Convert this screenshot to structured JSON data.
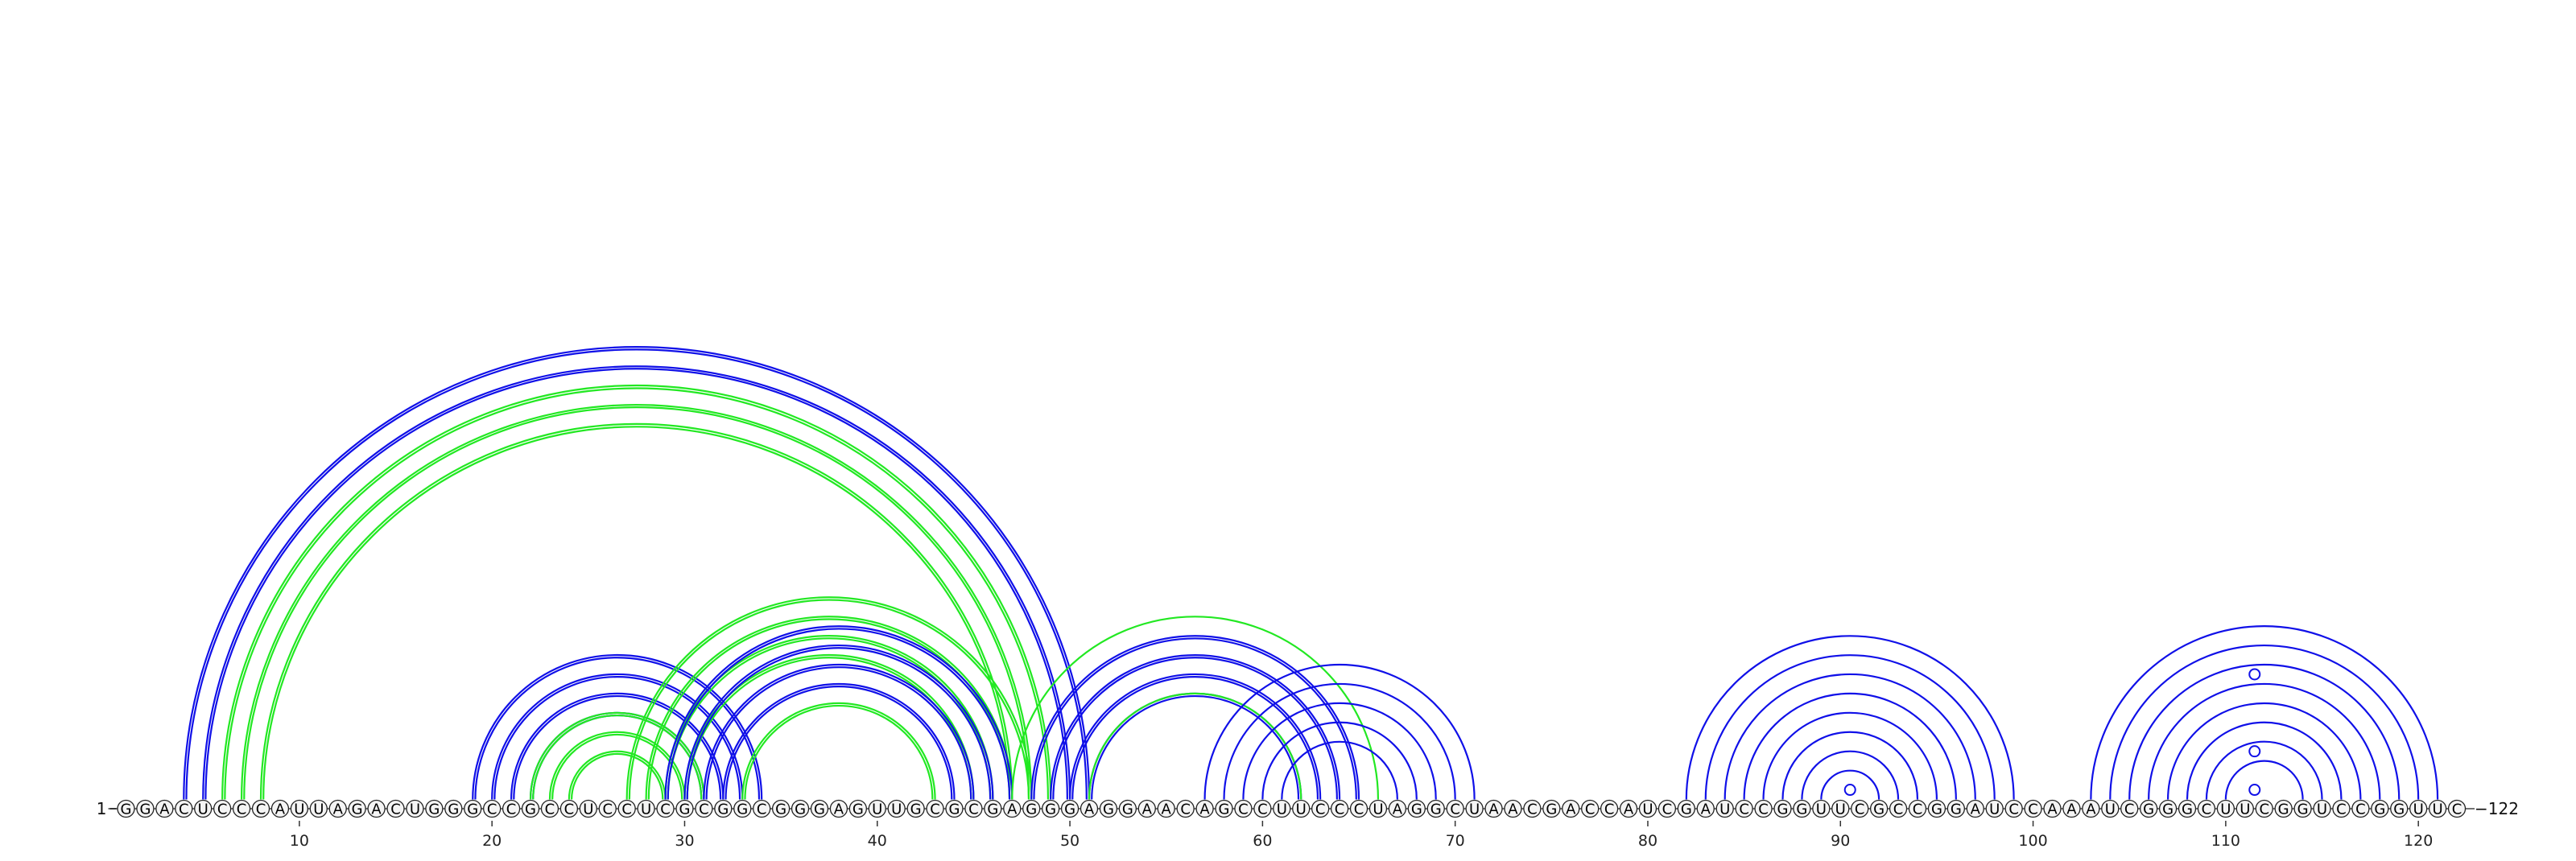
{
  "diagram": {
    "sequence": "GGACUCCCAUUAGACUGGGCCGCCUCCUCGCGGCGGGAGUUGCGCGAGGGAGGAACAGCCUUCCCUAGGCUAACGACCAUCGAUCCGGUUCGCCGGAUCCAAAUCGGGCUUCGGUCCGGUUC",
    "start_label": "1",
    "end_label": "122",
    "ticks": [
      10,
      20,
      30,
      40,
      50,
      60,
      70,
      80,
      90,
      100,
      110,
      120
    ],
    "colors": {
      "blue": "#1010e8",
      "green": "#22e822",
      "nucleotide_stroke": "#222222"
    },
    "helices": [
      {
        "color": "blue",
        "i": 4,
        "j": 51,
        "count": 2,
        "double": true
      },
      {
        "color": "green",
        "i": 6,
        "j": 49,
        "count": 2,
        "double": true
      },
      {
        "color": "green",
        "i": 8,
        "j": 47,
        "count": 1,
        "double": true
      },
      {
        "color": "blue",
        "i": 19,
        "j": 34,
        "count": 4,
        "double": true
      },
      {
        "color": "green",
        "i": 22,
        "j": 31,
        "count": 3,
        "double": true
      },
      {
        "color": "green",
        "i": 27,
        "j": 48,
        "count": 4,
        "double": true
      },
      {
        "color": "blue",
        "i": 29,
        "j": 47,
        "count": 4,
        "double": true
      },
      {
        "color": "green",
        "i": 33,
        "j": 43,
        "count": 1,
        "double": true
      },
      {
        "color": "green",
        "i": 47,
        "j": 66,
        "count": 1,
        "double": false
      },
      {
        "color": "blue",
        "i": 48,
        "j": 65,
        "count": 4,
        "double": true
      },
      {
        "color": "green",
        "i": 51,
        "j": 62,
        "count": 1,
        "double": false
      },
      {
        "color": "blue",
        "i": 57,
        "j": 71,
        "count": 5,
        "double": false
      },
      {
        "color": "blue",
        "i": 82,
        "j": 99,
        "count": 8,
        "double": false
      },
      {
        "color": "blue",
        "i": 103,
        "j": 121,
        "count": 8,
        "double": false
      }
    ],
    "loop_markers": [
      90.5,
      111.5
    ]
  }
}
